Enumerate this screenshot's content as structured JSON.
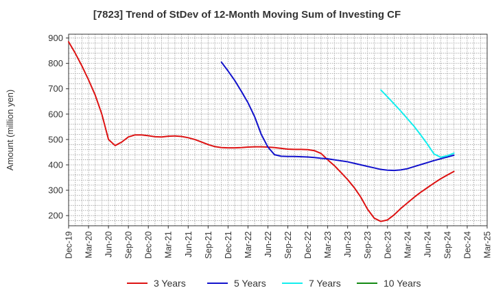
{
  "chart_data": {
    "type": "line",
    "title": "[7823]  Trend of StDev of 12-Month Moving Sum of Investing CF",
    "xlabel": "",
    "ylabel": "Amount (million yen)",
    "ylim": [
      160,
      915
    ],
    "yticks": [
      200,
      300,
      400,
      500,
      600,
      700,
      800,
      900
    ],
    "x_ticks": [
      "Dec-19",
      "Mar-20",
      "Jun-20",
      "Sep-20",
      "Dec-20",
      "Mar-21",
      "Jun-21",
      "Sep-21",
      "Dec-21",
      "Mar-22",
      "Jun-22",
      "Sep-22",
      "Dec-22",
      "Mar-23",
      "Jun-23",
      "Sep-23",
      "Dec-23",
      "Mar-24",
      "Jun-24",
      "Sep-24",
      "Dec-24",
      "Mar-25"
    ],
    "grid": true,
    "legend_position": "bottom",
    "series": [
      {
        "name": "3 Years",
        "color": "#dd1111",
        "points": [
          [
            "Dec-19",
            885
          ],
          [
            "Jan-20",
            840
          ],
          [
            "Feb-20",
            790
          ],
          [
            "Mar-20",
            735
          ],
          [
            "Apr-20",
            675
          ],
          [
            "May-20",
            600
          ],
          [
            "Jun-20",
            500
          ],
          [
            "Jul-20",
            476
          ],
          [
            "Aug-20",
            490
          ],
          [
            "Sep-20",
            510
          ],
          [
            "Oct-20",
            518
          ],
          [
            "Nov-20",
            518
          ],
          [
            "Dec-20",
            515
          ],
          [
            "Jan-21",
            511
          ],
          [
            "Feb-21",
            510
          ],
          [
            "Mar-21",
            513
          ],
          [
            "Apr-21",
            514
          ],
          [
            "May-21",
            512
          ],
          [
            "Jun-21",
            507
          ],
          [
            "Jul-21",
            500
          ],
          [
            "Aug-21",
            490
          ],
          [
            "Sep-21",
            480
          ],
          [
            "Oct-21",
            472
          ],
          [
            "Nov-21",
            468
          ],
          [
            "Dec-21",
            467
          ],
          [
            "Jan-22",
            467
          ],
          [
            "Feb-22",
            468
          ],
          [
            "Mar-22",
            470
          ],
          [
            "Apr-22",
            471
          ],
          [
            "May-22",
            471
          ],
          [
            "Jun-22",
            470
          ],
          [
            "Jul-22",
            468
          ],
          [
            "Aug-22",
            465
          ],
          [
            "Sep-22",
            462
          ],
          [
            "Oct-22",
            461
          ],
          [
            "Nov-22",
            461
          ],
          [
            "Dec-22",
            460
          ],
          [
            "Jan-23",
            456
          ],
          [
            "Feb-23",
            445
          ],
          [
            "Mar-23",
            420
          ],
          [
            "Apr-23",
            397
          ],
          [
            "May-23",
            370
          ],
          [
            "Jun-23",
            342
          ],
          [
            "Jul-23",
            310
          ],
          [
            "Aug-23",
            272
          ],
          [
            "Sep-23",
            225
          ],
          [
            "Oct-23",
            190
          ],
          [
            "Nov-23",
            177
          ],
          [
            "Dec-23",
            183
          ],
          [
            "Jan-24",
            203
          ],
          [
            "Feb-24",
            228
          ],
          [
            "Mar-24",
            250
          ],
          [
            "Apr-24",
            272
          ],
          [
            "May-24",
            292
          ],
          [
            "Jun-24",
            310
          ],
          [
            "Jul-24",
            328
          ],
          [
            "Aug-24",
            345
          ],
          [
            "Sep-24",
            360
          ],
          [
            "Oct-24",
            374
          ]
        ]
      },
      {
        "name": "5 Years",
        "color": "#1111cc",
        "points": [
          [
            "Nov-21",
            805
          ],
          [
            "Dec-21",
            770
          ],
          [
            "Jan-22",
            733
          ],
          [
            "Feb-22",
            690
          ],
          [
            "Mar-22",
            645
          ],
          [
            "Apr-22",
            590
          ],
          [
            "May-22",
            520
          ],
          [
            "Jun-22",
            470
          ],
          [
            "Jul-22",
            440
          ],
          [
            "Aug-22",
            434
          ],
          [
            "Sep-22",
            433
          ],
          [
            "Oct-22",
            433
          ],
          [
            "Nov-22",
            432
          ],
          [
            "Dec-22",
            431
          ],
          [
            "Jan-23",
            429
          ],
          [
            "Feb-23",
            426
          ],
          [
            "Mar-23",
            424
          ],
          [
            "Apr-23",
            420
          ],
          [
            "May-23",
            416
          ],
          [
            "Jun-23",
            412
          ],
          [
            "Jul-23",
            406
          ],
          [
            "Aug-23",
            400
          ],
          [
            "Sep-23",
            394
          ],
          [
            "Oct-23",
            388
          ],
          [
            "Nov-23",
            382
          ],
          [
            "Dec-23",
            379
          ],
          [
            "Jan-24",
            378
          ],
          [
            "Feb-24",
            380
          ],
          [
            "Mar-24",
            385
          ],
          [
            "Apr-24",
            393
          ],
          [
            "May-24",
            401
          ],
          [
            "Jun-24",
            409
          ],
          [
            "Jul-24",
            417
          ],
          [
            "Aug-24",
            424
          ],
          [
            "Sep-24",
            431
          ],
          [
            "Oct-24",
            438
          ]
        ]
      },
      {
        "name": "7 Years",
        "color": "#11eeee",
        "points": [
          [
            "Nov-23",
            695
          ],
          [
            "Dec-23",
            668
          ],
          [
            "Jan-24",
            640
          ],
          [
            "Feb-24",
            612
          ],
          [
            "Mar-24",
            582
          ],
          [
            "Apr-24",
            552
          ],
          [
            "May-24",
            518
          ],
          [
            "Jun-24",
            482
          ],
          [
            "Jul-24",
            443
          ],
          [
            "Aug-24",
            430
          ],
          [
            "Sep-24",
            436
          ],
          [
            "Oct-24",
            446
          ]
        ]
      },
      {
        "name": "10 Years",
        "color": "#118811",
        "points": []
      }
    ]
  }
}
